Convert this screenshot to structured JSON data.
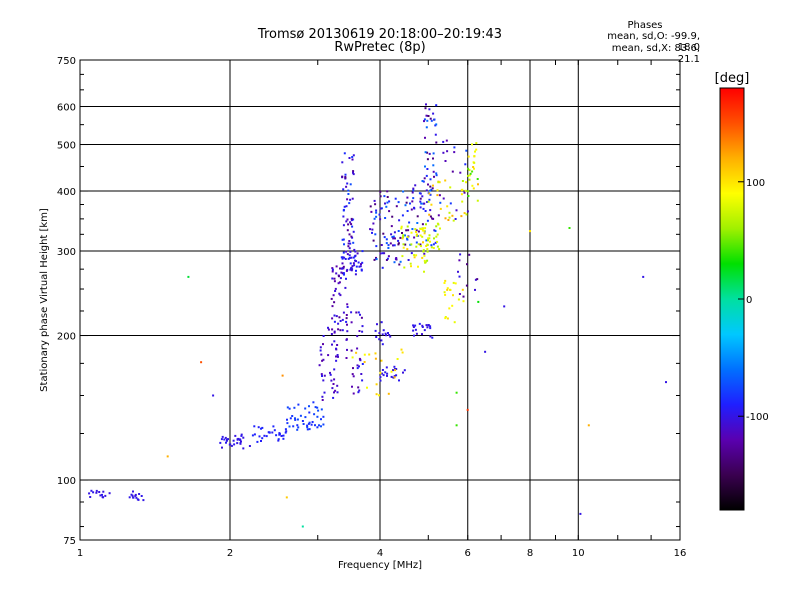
{
  "header": {
    "title_line1": "Tromsø 20130619 20:18:00–20:19:43",
    "title_line2": "RwPretec (8p)",
    "stats_heading": "Phases",
    "stats_o": "mean, sd,O: -99.9, 18.0",
    "stats_x": "mean, sd,X:  83.6, 21.1"
  },
  "colorbar": {
    "unit": "[deg]",
    "ticks": [
      {
        "value": 100,
        "label": "100"
      },
      {
        "value": 0,
        "label": "0"
      },
      {
        "value": -100,
        "label": "-100"
      }
    ],
    "range": [
      -180,
      180
    ],
    "colors": [
      "#000000",
      "#3a0050",
      "#5a00b0",
      "#1f1fff",
      "#0070ff",
      "#00c8ff",
      "#00e0a0",
      "#00e000",
      "#a0f000",
      "#ffff00",
      "#ffb000",
      "#ff5000",
      "#ff0000"
    ]
  },
  "chart_data": {
    "type": "scatter",
    "title": "Tromsø 20130619 20:18:00–20:19:43",
    "subtitle": "RwPretec (8p)",
    "xlabel": "Frequency [MHz]",
    "ylabel": "Stationary phase Virtual Height [km]",
    "x_scale": "log",
    "y_scale": "log",
    "xlim": [
      1,
      16
    ],
    "ylim": [
      75,
      750
    ],
    "x_ticks": [
      1,
      2,
      4,
      6,
      8,
      10,
      16
    ],
    "y_ticks": [
      75,
      100,
      200,
      300,
      400,
      500,
      600,
      750
    ],
    "x_grid": [
      2,
      4,
      6,
      8,
      10
    ],
    "y_grid": [
      100,
      200,
      300,
      400,
      500,
      600
    ],
    "color_meaning": "phase [deg]",
    "segments": [
      {
        "x0": 1.03,
        "x1": 1.15,
        "y0": 92,
        "y1": 94,
        "n": 14,
        "phase": -100,
        "spread": 3
      },
      {
        "x0": 1.25,
        "x1": 1.35,
        "y0": 92,
        "y1": 93,
        "n": 14,
        "phase": -100,
        "spread": 3
      },
      {
        "x0": 1.9,
        "x1": 2.2,
        "y0": 118,
        "y1": 123,
        "n": 30,
        "phase": -100,
        "spread": 4
      },
      {
        "x0": 2.2,
        "x1": 2.6,
        "y0": 121,
        "y1": 128,
        "n": 30,
        "phase": -90,
        "spread": 4
      },
      {
        "x0": 2.6,
        "x1": 3.1,
        "y0": 128,
        "y1": 145,
        "n": 45,
        "phase": -80,
        "spread": 8
      },
      {
        "x0": 3.0,
        "x1": 3.3,
        "y0": 145,
        "y1": 205,
        "n": 40,
        "phase": -110,
        "spread": 15
      },
      {
        "x0": 3.2,
        "x1": 3.45,
        "y0": 200,
        "y1": 290,
        "n": 50,
        "phase": -110,
        "spread": 20
      },
      {
        "x0": 3.35,
        "x1": 3.7,
        "y0": 270,
        "y1": 300,
        "n": 45,
        "phase": -100,
        "spread": 15
      },
      {
        "x0": 3.35,
        "x1": 3.55,
        "y0": 300,
        "y1": 480,
        "n": 55,
        "phase": -100,
        "spread": 30
      },
      {
        "x0": 3.4,
        "x1": 3.7,
        "y0": 150,
        "y1": 230,
        "n": 35,
        "phase": -110,
        "spread": 20
      },
      {
        "x0": 3.8,
        "x1": 4.6,
        "y0": 280,
        "y1": 400,
        "n": 90,
        "phase": -100,
        "spread": 40
      },
      {
        "x0": 4.0,
        "x1": 4.5,
        "y0": 160,
        "y1": 170,
        "n": 20,
        "phase": -100,
        "spread": 4
      },
      {
        "x0": 3.9,
        "x1": 4.2,
        "y0": 195,
        "y1": 210,
        "n": 15,
        "phase": -100,
        "spread": 5
      },
      {
        "x0": 4.6,
        "x1": 5.1,
        "y0": 200,
        "y1": 215,
        "n": 20,
        "phase": -100,
        "spread": 8
      },
      {
        "x0": 4.6,
        "x1": 5.2,
        "y0": 300,
        "y1": 420,
        "n": 60,
        "phase": -100,
        "spread": 40
      },
      {
        "x0": 4.9,
        "x1": 5.2,
        "y0": 420,
        "y1": 610,
        "n": 35,
        "phase": -100,
        "spread": 40
      },
      {
        "x0": 4.4,
        "x1": 5.0,
        "y0": 270,
        "y1": 340,
        "n": 45,
        "phase": 85,
        "spread": 25
      },
      {
        "x0": 4.8,
        "x1": 5.3,
        "y0": 300,
        "y1": 340,
        "n": 25,
        "phase": 75,
        "spread": 15
      },
      {
        "x0": 5.0,
        "x1": 6.0,
        "y0": 340,
        "y1": 420,
        "n": 30,
        "phase": 95,
        "spread": 30
      },
      {
        "x0": 6.0,
        "x1": 6.3,
        "y0": 380,
        "y1": 520,
        "n": 25,
        "phase": 80,
        "spread": 40
      },
      {
        "x0": 5.3,
        "x1": 5.9,
        "y0": 210,
        "y1": 260,
        "n": 20,
        "phase": 95,
        "spread": 15
      },
      {
        "x0": 3.5,
        "x1": 4.5,
        "y0": 150,
        "y1": 190,
        "n": 20,
        "phase": 100,
        "spread": 20
      },
      {
        "x0": 5.2,
        "x1": 6.1,
        "y0": 350,
        "y1": 510,
        "n": 20,
        "phase": -100,
        "spread": 30
      },
      {
        "x0": 5.7,
        "x1": 6.3,
        "y0": 230,
        "y1": 300,
        "n": 12,
        "phase": -120,
        "spread": 25
      }
    ],
    "scattered_points": [
      {
        "x": 1.65,
        "y": 265,
        "phase": 20
      },
      {
        "x": 1.75,
        "y": 176,
        "phase": 150
      },
      {
        "x": 1.5,
        "y": 112,
        "phase": 120
      },
      {
        "x": 1.85,
        "y": 150,
        "phase": -100
      },
      {
        "x": 2.6,
        "y": 92,
        "phase": 110
      },
      {
        "x": 2.8,
        "y": 80,
        "phase": 0
      },
      {
        "x": 2.55,
        "y": 165,
        "phase": 130
      },
      {
        "x": 6.5,
        "y": 185,
        "phase": -100
      },
      {
        "x": 5.7,
        "y": 152,
        "phase": 40
      },
      {
        "x": 6.0,
        "y": 140,
        "phase": 160
      },
      {
        "x": 5.7,
        "y": 130,
        "phase": 40
      },
      {
        "x": 7.1,
        "y": 230,
        "phase": -100
      },
      {
        "x": 8.0,
        "y": 330,
        "phase": 100
      },
      {
        "x": 9.6,
        "y": 335,
        "phase": 40
      },
      {
        "x": 10.5,
        "y": 130,
        "phase": 120
      },
      {
        "x": 10.1,
        "y": 85,
        "phase": -100
      },
      {
        "x": 15.0,
        "y": 160,
        "phase": -100
      },
      {
        "x": 13.5,
        "y": 265,
        "phase": -100
      },
      {
        "x": 6.3,
        "y": 235,
        "phase": 30
      }
    ]
  }
}
